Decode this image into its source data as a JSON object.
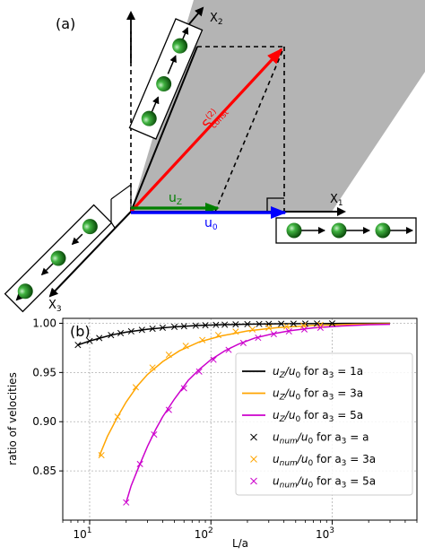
{
  "panel_a": {
    "label": "(a)",
    "axis_x1": "X",
    "axis_x1_sub": "1",
    "axis_x2": "X",
    "axis_x2_sub": "2",
    "axis_x3": "X",
    "axis_x3_sub": "3",
    "vector_s_main": "S",
    "vector_s_sup": "(2)",
    "vector_s_sub": "const",
    "vector_uz_main": "u",
    "vector_uz_sub": "Z",
    "vector_u0_main": "u",
    "vector_u0_sub": "0",
    "colors": {
      "plane": "#b4b4b4",
      "s_vector": "#ff0000",
      "uz_vector": "#007f00",
      "u0_vector": "#0000ff",
      "sphere": "#2e9a2e"
    }
  },
  "chart_data": {
    "type": "line",
    "panel_label": "(b)",
    "xlabel": "L/a",
    "ylabel": "ratio of velocities",
    "xscale": "log",
    "xlim": [
      6,
      5000
    ],
    "ylim": [
      0.8,
      1.005
    ],
    "x_ticks": [
      10,
      100,
      1000
    ],
    "x_tick_labels": [
      {
        "base": "10",
        "exp": "1"
      },
      {
        "base": "10",
        "exp": "2"
      },
      {
        "base": "10",
        "exp": "3"
      }
    ],
    "y_ticks": [
      0.85,
      0.9,
      0.95,
      1.0
    ],
    "y_tick_labels": [
      "0.85",
      "0.90",
      "0.95",
      "1.00"
    ],
    "grid": true,
    "legend_position": "right",
    "series": [
      {
        "name_main": "u",
        "name_sub": "Z",
        "name_rest": "/u",
        "name_sub2": "0",
        "name_tail": " for a",
        "name_sub3": "3",
        "name_end": " = 1a",
        "kind": "line",
        "color": "#000000",
        "x": [
          8,
          10,
          15,
          20,
          30,
          50,
          80,
          120,
          200,
          400,
          1000,
          3000
        ],
        "y": [
          0.978,
          0.982,
          0.988,
          0.991,
          0.994,
          0.9964,
          0.9978,
          0.9985,
          0.9991,
          0.99955,
          0.9998,
          0.99995
        ]
      },
      {
        "name_main": "u",
        "name_sub": "Z",
        "name_rest": "/u",
        "name_sub2": "0",
        "name_tail": " for a",
        "name_sub3": "3",
        "name_end": " = 3a",
        "kind": "line",
        "color": "#ffa500",
        "x": [
          12,
          14,
          17,
          20,
          25,
          30,
          40,
          55,
          80,
          120,
          200,
          350,
          700,
          1500,
          3000
        ],
        "y": [
          0.865,
          0.885,
          0.905,
          0.92,
          0.937,
          0.948,
          0.961,
          0.972,
          0.981,
          0.987,
          0.9922,
          0.9956,
          0.9978,
          0.999,
          0.9995
        ]
      },
      {
        "name_main": "u",
        "name_sub": "Z",
        "name_rest": "/u",
        "name_sub2": "0",
        "name_tail": " for a",
        "name_sub3": "3",
        "name_end": " = 5a",
        "kind": "line",
        "color": "#cc00cc",
        "x": [
          20,
          22,
          25,
          30,
          35,
          40,
          50,
          65,
          80,
          100,
          130,
          170,
          230,
          320,
          450,
          700,
          1200,
          2000,
          3000
        ],
        "y": [
          0.818,
          0.835,
          0.852,
          0.875,
          0.892,
          0.905,
          0.923,
          0.942,
          0.953,
          0.963,
          0.972,
          0.979,
          0.985,
          0.9892,
          0.9925,
          0.9953,
          0.9973,
          0.9985,
          0.999
        ]
      },
      {
        "name_main": "u",
        "name_sub": "num",
        "name_rest": "/u",
        "name_sub2": "0",
        "name_tail": " for a",
        "name_sub3": "3",
        "name_end": " = a",
        "kind": "markers",
        "color": "#000000",
        "x": [
          8,
          10,
          12,
          15,
          18,
          22,
          27,
          33,
          40,
          50,
          60,
          75,
          90,
          110,
          130,
          160,
          200,
          250,
          300,
          380,
          480,
          600,
          750,
          1000
        ],
        "y": [
          0.978,
          0.982,
          0.985,
          0.988,
          0.99,
          0.9918,
          0.9933,
          0.9945,
          0.9955,
          0.9964,
          0.997,
          0.9976,
          0.998,
          0.9984,
          0.9986,
          0.9989,
          0.9991,
          0.9993,
          0.9994,
          0.9995,
          0.9996,
          0.9997,
          0.99975,
          0.9998
        ]
      },
      {
        "name_main": "u",
        "name_sub": "num",
        "name_rest": "/u",
        "name_sub2": "0",
        "name_tail": " for a",
        "name_sub3": "3",
        "name_end": " = 3a",
        "kind": "markers",
        "color": "#ffa500",
        "x": [
          12.5,
          17,
          24,
          33,
          45,
          62,
          85,
          115,
          160,
          220,
          300,
          420,
          580,
          800
        ],
        "y": [
          0.866,
          0.905,
          0.935,
          0.955,
          0.968,
          0.977,
          0.983,
          0.988,
          0.9915,
          0.9938,
          0.9955,
          0.9968,
          0.9977,
          0.9983
        ]
      },
      {
        "name_main": "u",
        "name_sub": "num",
        "name_rest": "/u",
        "name_sub2": "0",
        "name_tail": " for a",
        "name_sub3": "3",
        "name_end": " = 5a",
        "kind": "markers",
        "color": "#cc00cc",
        "x": [
          20,
          26,
          34,
          45,
          60,
          80,
          105,
          140,
          185,
          245,
          330,
          440,
          590,
          800
        ],
        "y": [
          0.818,
          0.857,
          0.887,
          0.912,
          0.934,
          0.951,
          0.963,
          0.973,
          0.98,
          0.9853,
          0.989,
          0.9918,
          0.9938,
          0.9955
        ]
      }
    ]
  }
}
